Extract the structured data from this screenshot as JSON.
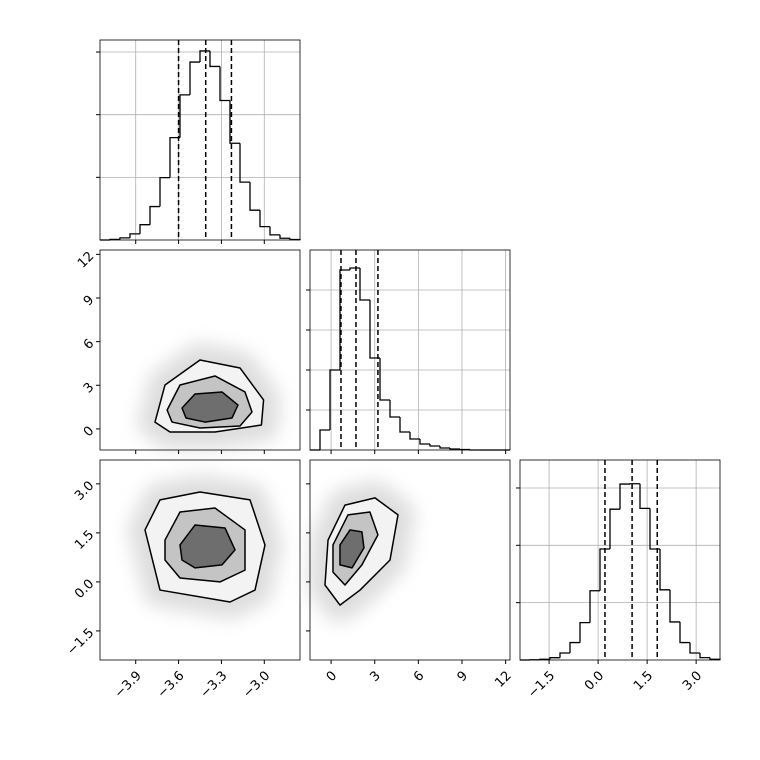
{
  "chart_data": {
    "type": "corner",
    "axes": [
      {
        "lim": [
          -4.15,
          -2.75
        ],
        "ticks": [
          {
            "value": -3.9,
            "label": "−3.9"
          },
          {
            "value": -3.6,
            "label": "−3.6"
          },
          {
            "value": -3.3,
            "label": "−3.3"
          },
          {
            "value": -3.0,
            "label": "−3.0"
          }
        ]
      },
      {
        "lim": [
          -1.45,
          12.3
        ],
        "ticks": [
          0,
          3,
          6,
          9,
          12
        ]
      },
      {
        "lim": [
          -2.39,
          3.73
        ],
        "ticks": [
          {
            "value": -1.5,
            "label": "−1.5"
          },
          {
            "value": 0,
            "label": "0.0"
          },
          {
            "value": 1.5,
            "label": "1.5"
          },
          {
            "value": 3,
            "label": "3.0"
          }
        ]
      }
    ],
    "histograms": [
      {
        "bins": [
          -4.15,
          -4.08,
          -4.01,
          -3.94,
          -3.87,
          -3.8,
          -3.73,
          -3.66,
          -3.59,
          -3.52,
          -3.45,
          -3.38,
          -3.31,
          -3.24,
          -3.17,
          -3.1,
          -3.03,
          -2.96,
          -2.89,
          -2.82,
          -2.75
        ],
        "counts": [
          0,
          5,
          17,
          49,
          122,
          267,
          498,
          817,
          1158,
          1420,
          1509,
          1385,
          1113,
          772,
          462,
          238,
          107,
          41,
          14,
          4
        ],
        "ylim": [
          0,
          1596
        ],
        "yticks": [
          500,
          1000,
          1500
        ],
        "quantiles": [
          -3.6,
          -3.41,
          -3.23
        ]
      },
      {
        "bins": [
          -1.45,
          -0.7625,
          -0.075,
          0.6125,
          1.3,
          1.9875,
          2.675,
          3.3625,
          4.05,
          4.7375,
          5.425,
          6.1125,
          6.8,
          7.4875,
          8.175,
          8.8625,
          9.55,
          10.2375,
          10.925,
          11.6125,
          12.3
        ],
        "counts": [
          0,
          200,
          800,
          1800,
          1820,
          1500,
          920,
          500,
          330,
          180,
          110,
          60,
          40,
          20,
          10,
          5,
          0,
          0,
          0,
          0
        ],
        "ylim": [
          0,
          2000
        ],
        "yticks": [
          400,
          800,
          1200,
          1600
        ],
        "quantiles": [
          0.68,
          1.71,
          3.22
        ]
      },
      {
        "bins": [
          -2.39,
          -2.084,
          -1.778,
          -1.472,
          -1.166,
          -0.86,
          -0.554,
          -0.248,
          0.058,
          0.364,
          0.67,
          0.976,
          1.282,
          1.588,
          1.894,
          2.2,
          2.506,
          2.812,
          3.118,
          3.424,
          3.73
        ],
        "counts": [
          0,
          2,
          6,
          20,
          61,
          152,
          326,
          604,
          968,
          1315,
          1534,
          1537,
          1322,
          968,
          612,
          332,
          152,
          61,
          21,
          6
        ],
        "ylim": [
          0,
          1744
        ],
        "yticks": [
          500,
          1000,
          1500
        ],
        "quantiles": [
          0.21,
          1.04,
          1.81
        ]
      }
    ],
    "panels": [
      {
        "contours": [
          {
            "x": [
              -3.765,
              -3.695,
              -3.45,
              -3.17,
              -3.005,
              -3.02,
              -3.345,
              -3.66
            ],
            "y": [
              0.47,
              3.02,
              4.74,
              4.19,
              1.99,
              0.27,
              -0.21,
              -0.21
            ]
          },
          {
            "x": [
              -3.68,
              -3.59,
              -3.345,
              -3.135,
              -3.086,
              -3.17,
              -3.45,
              -3.646
            ],
            "y": [
              1.3,
              3.02,
              3.64,
              2.54,
              1.16,
              0.2,
              0.06,
              0.47
            ]
          },
          {
            "x": [
              -3.576,
              -3.485,
              -3.296,
              -3.184,
              -3.226,
              -3.415,
              -3.548
            ],
            "y": [
              1.44,
              2.4,
              2.54,
              1.64,
              0.75,
              0.47,
              0.75
            ]
          }
        ]
      },
      {
        "contours": [
          {
            "x": [
              -3.835,
              -3.73,
              -3.45,
              -3.1,
              -2.995,
              -3.065,
              -3.24,
              -3.73
            ],
            "y": [
              1.59,
              2.51,
              2.75,
              2.51,
              1.13,
              -0.25,
              -0.615,
              -0.25
            ]
          },
          {
            "x": [
              -3.695,
              -3.59,
              -3.345,
              -3.135,
              -3.135,
              -3.31,
              -3.59,
              -3.695
            ],
            "y": [
              1.28,
              2.14,
              2.26,
              1.59,
              0.36,
              0.0,
              0.12,
              0.67
            ]
          },
          {
            "x": [
              -3.59,
              -3.485,
              -3.275,
              -3.205,
              -3.296,
              -3.485,
              -3.576
            ],
            "y": [
              1.13,
              1.74,
              1.65,
              0.98,
              0.52,
              0.43,
              0.67
            ]
          }
        ]
      },
      {
        "contours": [
          {
            "x": [
              -0.21,
              0.955,
              3.02,
              4.6,
              4.05,
              1.99,
              0.61,
              -0.42
            ],
            "y": [
              1.28,
              2.35,
              2.57,
              2.05,
              0.67,
              -0.25,
              -0.71,
              -0.095
            ]
          },
          {
            "x": [
              0.13,
              1.16,
              2.67,
              3.22,
              2.12,
              0.955,
              0.13
            ],
            "y": [
              1.13,
              2.05,
              2.14,
              1.44,
              0.52,
              -0.095,
              0.3
            ]
          },
          {
            "x": [
              0.61,
              1.3,
              2.12,
              2.26,
              1.44,
              0.61
            ],
            "y": [
              1.13,
              1.59,
              1.53,
              1.04,
              0.43,
              0.52
            ]
          }
        ]
      }
    ]
  }
}
